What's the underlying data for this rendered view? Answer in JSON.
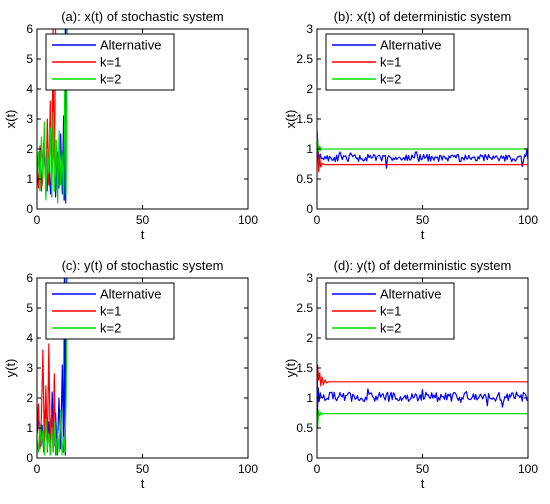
{
  "colors": {
    "Alternative": "#0000ff",
    "k=1": "#ff0000",
    "k=2": "#00dd00"
  },
  "chart_data": [
    {
      "id": "a",
      "type": "line",
      "title": "(a): x(t) of stochastic system",
      "xlabel": "t",
      "ylabel": "x(t)",
      "xlim": [
        0,
        100
      ],
      "ylim": [
        0,
        6
      ],
      "xticks": [
        0,
        50,
        100
      ],
      "yticks": [
        0,
        1,
        2,
        3,
        4,
        5,
        6
      ],
      "legend_position": "top-left",
      "grid": false,
      "series": [
        {
          "name": "Alternative",
          "x": [
            0,
            0.8,
            1.6,
            2.4,
            3.2,
            4,
            4.8,
            5.6,
            6.4,
            7.2,
            8,
            8.8,
            9.6,
            10.4,
            11.2,
            12,
            12.6,
            13,
            13.4,
            13.6,
            13.8
          ],
          "y": [
            1.2,
            0.9,
            1.6,
            0.8,
            2.2,
            1.1,
            0.6,
            1.8,
            0.5,
            1.4,
            2.6,
            0.4,
            1.9,
            0.7,
            2.5,
            0.5,
            3.1,
            0.3,
            6.0,
            0.2,
            6.0
          ]
        },
        {
          "name": "k=1",
          "x": [
            0,
            0.7,
            1.4,
            2.1,
            2.8,
            3.5,
            4.2,
            4.9,
            5.6,
            6.3,
            7,
            7.6,
            8.2,
            8.8,
            9.3
          ],
          "y": [
            1.5,
            0.7,
            2.1,
            0.6,
            1.3,
            2.6,
            0.5,
            3.0,
            0.8,
            3.6,
            0.4,
            6.0,
            0.6,
            6.0,
            6.0
          ]
        },
        {
          "name": "k=2",
          "x": [
            0,
            0.7,
            1.4,
            2.1,
            2.8,
            3.5,
            4.2,
            4.9,
            5.6,
            6.3,
            7,
            7.7,
            8.4,
            9.1,
            9.8,
            10.5,
            11.2,
            11.9,
            12.6,
            13.2,
            13.8,
            14.3
          ],
          "y": [
            1.0,
            1.9,
            0.6,
            2.4,
            1.0,
            2.9,
            0.3,
            2.0,
            1.2,
            2.7,
            0.4,
            3.2,
            0.6,
            2.3,
            0.2,
            2.6,
            0.8,
            1.9,
            0.3,
            4.0,
            0.5,
            6.0
          ]
        }
      ]
    },
    {
      "id": "b",
      "type": "line",
      "title": "(b): x(t) of deterministic system",
      "xlabel": "t",
      "ylabel": "x(t)",
      "xlim": [
        0,
        100
      ],
      "ylim": [
        0,
        3
      ],
      "xticks": [
        0,
        50,
        100
      ],
      "yticks": [
        0,
        0.5,
        1,
        1.5,
        2,
        2.5,
        3
      ],
      "legend_position": "top-left",
      "grid": false,
      "series": [
        {
          "name": "Alternative",
          "mean": 0.85,
          "noise": 0.06,
          "start": 1.3,
          "seed": 11
        },
        {
          "name": "k=1",
          "x": [
            0,
            0.3,
            0.8,
            1.3,
            1.8,
            2.5,
            3.5,
            100
          ],
          "y": [
            1.3,
            1.05,
            0.62,
            0.85,
            0.7,
            0.76,
            0.74,
            0.74
          ]
        },
        {
          "name": "k=2",
          "x": [
            0,
            0.3,
            0.8,
            1.3,
            1.8,
            2.5,
            3.5,
            100
          ],
          "y": [
            1.3,
            1.15,
            0.95,
            1.05,
            0.98,
            1.0,
            1.0,
            1.0
          ]
        }
      ]
    },
    {
      "id": "c",
      "type": "line",
      "title": "(c): y(t) of stochastic system",
      "xlabel": "t",
      "ylabel": "y(t)",
      "xlim": [
        0,
        100
      ],
      "ylim": [
        0,
        6
      ],
      "xticks": [
        0,
        50,
        100
      ],
      "yticks": [
        0,
        1,
        2,
        3,
        4,
        5,
        6
      ],
      "legend_position": "top-left",
      "grid": false,
      "series": [
        {
          "name": "Alternative",
          "x": [
            0,
            0.8,
            1.6,
            2.4,
            3.2,
            4,
            4.8,
            5.6,
            6.4,
            7.2,
            8,
            8.8,
            9.6,
            10.4,
            11.2,
            12,
            12.6,
            13,
            13.4,
            13.8
          ],
          "y": [
            0.8,
            1.4,
            0.4,
            1.1,
            0.2,
            1.6,
            0.5,
            1.2,
            0.1,
            2.2,
            0.4,
            1.5,
            0.1,
            2.0,
            0.3,
            3.1,
            0.2,
            6.0,
            0.1,
            6.0
          ]
        },
        {
          "name": "k=1",
          "x": [
            0,
            0.7,
            1.4,
            2.1,
            2.8,
            3.5,
            4.2,
            4.9,
            5.6,
            6.3,
            7,
            7.6,
            8.2,
            8.8,
            9.3
          ],
          "y": [
            0.9,
            1.8,
            0.3,
            1.4,
            3.6,
            0.4,
            2.4,
            0.2,
            3.8,
            0.3,
            1.6,
            0.2,
            2.8,
            0.1,
            0.3
          ]
        },
        {
          "name": "k=2",
          "x": [
            0,
            0.7,
            1.4,
            2.1,
            2.8,
            3.5,
            4.2,
            4.9,
            5.6,
            6.3,
            7,
            7.7,
            8.4,
            9.1,
            9.8,
            10.5,
            11.2,
            11.9,
            12.6,
            13.2,
            13.8,
            14.3
          ],
          "y": [
            0.6,
            0.2,
            1.1,
            0.4,
            0.9,
            0.1,
            1.3,
            0.3,
            0.8,
            0.1,
            1.0,
            0.2,
            1.2,
            0.1,
            0.9,
            0.2,
            1.6,
            0.1,
            0.7,
            0.2,
            2.0,
            6.0
          ]
        }
      ]
    },
    {
      "id": "d",
      "type": "line",
      "title": "(d): y(t) of deterministic system",
      "xlabel": "t",
      "ylabel": "y(t)",
      "xlim": [
        0,
        100
      ],
      "ylim": [
        0,
        3
      ],
      "xticks": [
        0,
        50,
        100
      ],
      "yticks": [
        0,
        0.5,
        1,
        1.5,
        2,
        2.5,
        3
      ],
      "legend_position": "top-left",
      "grid": false,
      "series": [
        {
          "name": "Alternative",
          "mean": 1.02,
          "noise": 0.08,
          "start": 0.55,
          "seed": 29
        },
        {
          "name": "k=1",
          "x": [
            0,
            0.3,
            0.8,
            1.3,
            1.8,
            2.4,
            3.0,
            3.8,
            4.6,
            5.5,
            100
          ],
          "y": [
            0.6,
            1.55,
            1.3,
            1.42,
            1.2,
            1.35,
            1.22,
            1.3,
            1.25,
            1.27,
            1.27
          ]
        },
        {
          "name": "k=2",
          "x": [
            0,
            0.3,
            0.8,
            1.3,
            1.8,
            2.5,
            3.5,
            100
          ],
          "y": [
            0.6,
            0.5,
            0.8,
            0.7,
            0.76,
            0.73,
            0.74,
            0.74
          ]
        }
      ]
    }
  ]
}
